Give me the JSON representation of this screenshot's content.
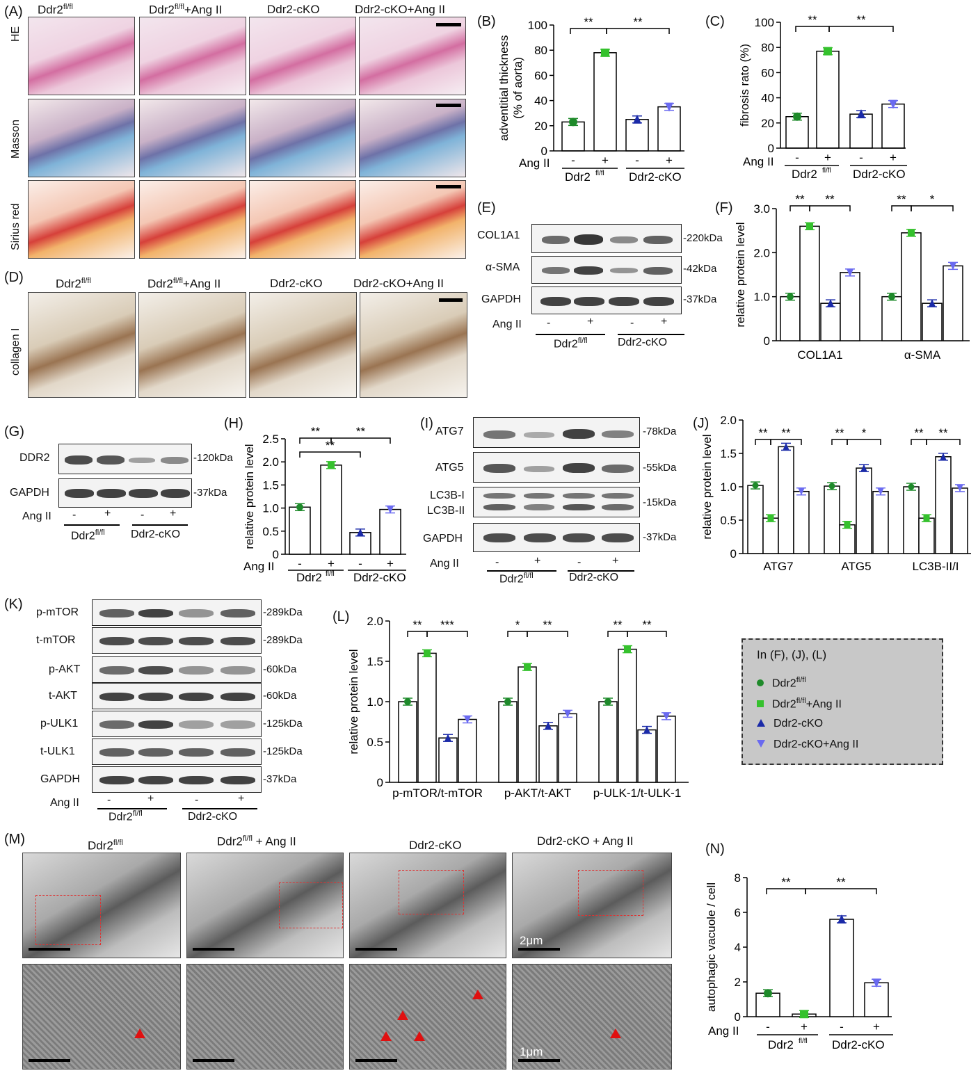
{
  "panels": {
    "A": "(A)",
    "B": "(B)",
    "C": "(C)",
    "D": "(D)",
    "E": "(E)",
    "F": "(F)",
    "G": "(G)",
    "H": "(H)",
    "I": "(I)",
    "J": "(J)",
    "K": "(K)",
    "L": "(L)",
    "M": "(M)",
    "N": "(N)"
  },
  "groups": {
    "wt": "Ddr2",
    "wt_sup": "fl/fl",
    "wt_ang": "+Ang II",
    "cko": "Ddr2-cKO",
    "cko_ang": "Ddr2-cKO+Ang II",
    "wt_ang_sp": " + Ang II",
    "cko_ang_sp": "Ddr2-cKO + Ang II"
  },
  "stains": {
    "he": "HE",
    "masson": "Masson",
    "sirius": "Sirius red",
    "collagen": "collagen I"
  },
  "angii": {
    "label": "Ang II",
    "minus": "-",
    "plus": "+"
  },
  "blots": {
    "E": {
      "rows": [
        "COL1A1",
        "α-SMA",
        "GAPDH"
      ],
      "kda": [
        "-220kDa",
        "-42kDa",
        "-37kDa"
      ]
    },
    "G": {
      "rows": [
        "DDR2",
        "GAPDH"
      ],
      "kda": [
        "-120kDa",
        "-37kDa"
      ]
    },
    "I": {
      "rows": [
        "ATG7",
        "ATG5",
        "LC3B-I",
        "LC3B-II",
        "GAPDH"
      ],
      "kda": [
        "-78kDa",
        "-55kDa",
        "-15kDa",
        "-37kDa"
      ]
    },
    "K": {
      "rows": [
        "p-mTOR",
        "t-mTOR",
        "p-AKT",
        "t-AKT",
        "p-ULK1",
        "t-ULK1",
        "GAPDH"
      ],
      "kda": [
        "-289kDa",
        "-289kDa",
        "-60kDa",
        "-60kDa",
        "-125kDa",
        "-125kDa",
        "-37kDa"
      ]
    }
  },
  "tem": {
    "scale1": "2μm",
    "scale2": "1μm"
  },
  "legend": {
    "title": "In (F), (J), (L)",
    "items": [
      "Ddr2",
      "+Ang II",
      "Ddr2-cKO",
      "Ddr2-cKO+Ang II"
    ]
  },
  "colors": {
    "wt": "#1e8a2a",
    "wt_ang": "#35c12d",
    "cko": "#1a2aa8",
    "cko_ang": "#6a6af0"
  },
  "chart_data": [
    {
      "id": "B",
      "type": "bar",
      "ylabel": "adventitial thickness\n(% of aorta)",
      "ylim": [
        0,
        100
      ],
      "yticks": [
        0,
        20,
        40,
        60,
        80,
        100
      ],
      "values": [
        23,
        78,
        25,
        35
      ],
      "sig": [
        "**",
        "**"
      ]
    },
    {
      "id": "C",
      "type": "bar",
      "ylabel": "fibrosis rato (%)",
      "ylim": [
        0,
        100
      ],
      "yticks": [
        0,
        20,
        40,
        60,
        80,
        100
      ],
      "values": [
        25,
        77,
        27,
        35
      ],
      "sig": [
        "**",
        "**"
      ]
    },
    {
      "id": "F",
      "type": "bar",
      "ylabel": "relative protein level",
      "ylim": [
        0,
        3.0
      ],
      "yticks": [
        "0",
        "1.0",
        "2.0",
        "3.0"
      ],
      "categories": [
        "COL1A1",
        "α-SMA"
      ],
      "values": [
        [
          1.0,
          2.6,
          0.85,
          1.55
        ],
        [
          1.0,
          2.45,
          0.85,
          1.7
        ]
      ],
      "sig": [
        [
          "**",
          "**"
        ],
        [
          "**",
          "*"
        ]
      ]
    },
    {
      "id": "H",
      "type": "bar",
      "ylabel": "relative protein level",
      "ylim": [
        0,
        2.5
      ],
      "yticks": [
        "0",
        "0.5",
        "1.0",
        "1.5",
        "2.0",
        "2.5"
      ],
      "values": [
        1.02,
        1.93,
        0.47,
        0.97
      ],
      "sig": [
        "**",
        "**",
        "**"
      ]
    },
    {
      "id": "J",
      "type": "bar",
      "ylabel": "relative protein level",
      "ylim": [
        0,
        2.0
      ],
      "yticks": [
        "0",
        "0.5",
        "1.0",
        "1.5",
        "2.0"
      ],
      "categories": [
        "ATG7",
        "ATG5",
        "LC3B-II/I"
      ],
      "values": [
        [
          1.02,
          0.53,
          1.6,
          0.93
        ],
        [
          1.01,
          0.43,
          1.28,
          0.93
        ],
        [
          1.0,
          0.53,
          1.45,
          0.98
        ]
      ],
      "sig": [
        [
          "**",
          "**"
        ],
        [
          "**",
          "*"
        ],
        [
          "**",
          "**"
        ]
      ]
    },
    {
      "id": "L",
      "type": "bar",
      "ylabel": "relative protein level",
      "ylim": [
        0,
        2.0
      ],
      "yticks": [
        "0",
        "0.5",
        "1.0",
        "1.5",
        "2.0"
      ],
      "categories": [
        "p-mTOR/t-mTOR",
        "p-AKT/t-AKT",
        "p-ULK-1/t-ULK-1"
      ],
      "values": [
        [
          1.0,
          1.6,
          0.55,
          0.78
        ],
        [
          1.0,
          1.43,
          0.7,
          0.85
        ],
        [
          1.0,
          1.65,
          0.65,
          0.82
        ]
      ],
      "sig": [
        [
          "**",
          "***"
        ],
        [
          "*",
          "**"
        ],
        [
          "**",
          "**"
        ]
      ]
    },
    {
      "id": "N",
      "type": "bar",
      "ylabel": "autophagic vacuole / cell",
      "ylim": [
        0,
        8
      ],
      "yticks": [
        0,
        2,
        4,
        6,
        8
      ],
      "values": [
        1.35,
        0.15,
        5.6,
        1.95
      ],
      "sig": [
        "**",
        "**"
      ]
    }
  ]
}
